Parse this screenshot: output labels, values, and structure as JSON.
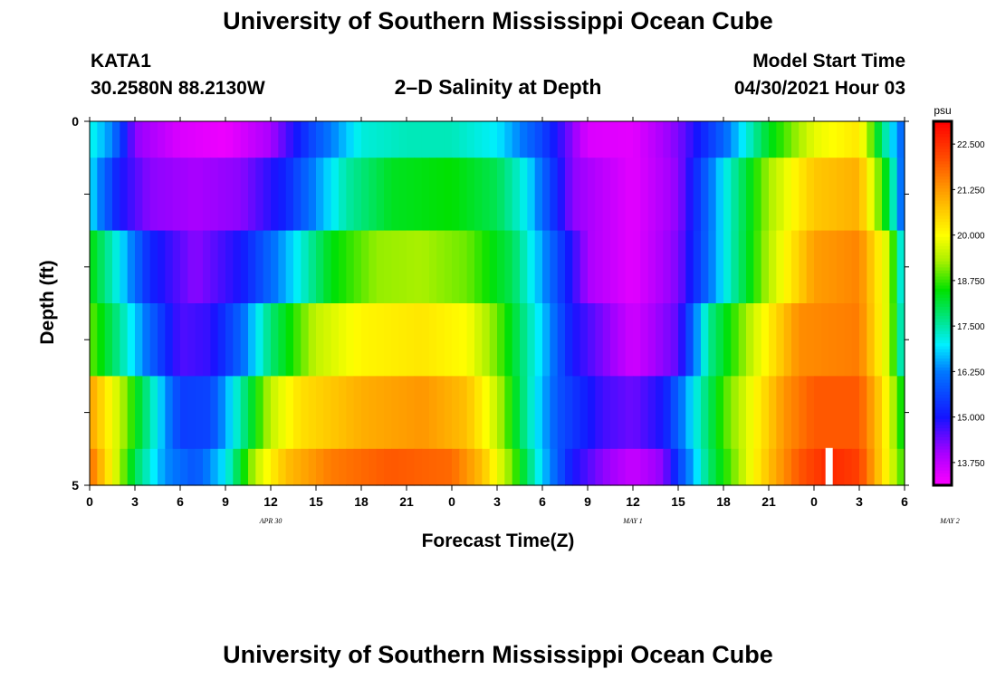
{
  "header": {
    "title": "University of Southern Mississippi Ocean Cube",
    "station": "KATA1",
    "coordinates": "30.2580N  88.2130W",
    "plot_title": "2–D Salinity at Depth",
    "model_start_label": "Model Start Time",
    "model_start_value": "04/30/2021 Hour 03"
  },
  "footer": {
    "title": "University of Southern Mississippi Ocean Cube"
  },
  "chart_data": {
    "type": "heatmap",
    "title": "2–D Salinity at Depth",
    "xlabel": "Forecast Time(Z)",
    "ylabel": "Depth (ft)",
    "x_tick_labels": [
      "0",
      "3",
      "6",
      "9",
      "12",
      "15",
      "18",
      "21",
      "0",
      "3",
      "6",
      "9",
      "12",
      "15",
      "18",
      "21",
      "0",
      "3",
      "6"
    ],
    "date_labels": [
      {
        "label": "APR 30",
        "hour": 12
      },
      {
        "label": "MAY 1",
        "hour": 36
      },
      {
        "label": "MAY 2",
        "hour": 57
      }
    ],
    "x_range_hours": [
      0,
      54
    ],
    "y_tick_labels": [
      "0",
      "5"
    ],
    "ylim": [
      0,
      5
    ],
    "colorbar": {
      "unit": "psu",
      "min": 13.125,
      "max": 23.125,
      "tick_values": [
        13.75,
        15.0,
        16.25,
        17.5,
        18.75,
        20.0,
        21.25,
        22.5
      ],
      "tick_labels": [
        "13.750",
        "15.000",
        "16.250",
        "17.500",
        "18.750",
        "20.000",
        "21.250",
        "22.500"
      ]
    },
    "rows": [
      {
        "depth": 0,
        "values": [
          [
            0,
            17.2
          ],
          [
            1.5,
            16.3
          ],
          [
            3,
            14.2
          ],
          [
            6,
            13.5
          ],
          [
            9,
            13.3
          ],
          [
            12,
            14.0
          ],
          [
            15,
            15.8
          ],
          [
            18,
            17.2
          ],
          [
            21,
            17.4
          ],
          [
            24,
            17.4
          ],
          [
            27,
            17.0
          ],
          [
            30,
            15.6
          ],
          [
            33,
            13.5
          ],
          [
            36,
            13.4
          ],
          [
            39,
            14.3
          ],
          [
            42,
            16.0
          ],
          [
            45,
            18.3
          ],
          [
            48,
            19.8
          ],
          [
            51,
            20.3
          ],
          [
            52.5,
            17.8
          ],
          [
            54,
            15.8
          ]
        ]
      },
      {
        "depth": 1,
        "values": [
          [
            0,
            17.0
          ],
          [
            2,
            15.0
          ],
          [
            4,
            14.2
          ],
          [
            7,
            14.0
          ],
          [
            10,
            14.2
          ],
          [
            13,
            15.2
          ],
          [
            15,
            16.4
          ],
          [
            17,
            17.5
          ],
          [
            20,
            18.3
          ],
          [
            24,
            18.5
          ],
          [
            27,
            18.0
          ],
          [
            29,
            17.0
          ],
          [
            32,
            14.2
          ],
          [
            36,
            13.4
          ],
          [
            39,
            14.2
          ],
          [
            42,
            17.0
          ],
          [
            45,
            19.3
          ],
          [
            48,
            20.7
          ],
          [
            51,
            21.0
          ],
          [
            53,
            18.0
          ],
          [
            54,
            15.6
          ]
        ]
      },
      {
        "depth": 2,
        "values": [
          [
            0,
            18.5
          ],
          [
            2,
            17.0
          ],
          [
            4,
            15.2
          ],
          [
            7,
            14.2
          ],
          [
            10,
            15.0
          ],
          [
            13,
            16.6
          ],
          [
            16,
            18.4
          ],
          [
            19,
            19.2
          ],
          [
            22,
            19.3
          ],
          [
            25,
            19.0
          ],
          [
            28,
            18.0
          ],
          [
            30,
            16.5
          ],
          [
            33,
            14.0
          ],
          [
            36,
            13.4
          ],
          [
            39,
            14.3
          ],
          [
            42,
            17.0
          ],
          [
            45,
            19.4
          ],
          [
            48,
            21.2
          ],
          [
            51,
            21.5
          ],
          [
            53,
            19.5
          ],
          [
            54,
            16.5
          ]
        ]
      },
      {
        "depth": 3,
        "values": [
          [
            0,
            19.0
          ],
          [
            2,
            17.6
          ],
          [
            4,
            16.0
          ],
          [
            6,
            14.6
          ],
          [
            8,
            14.8
          ],
          [
            10,
            16.0
          ],
          [
            12,
            17.8
          ],
          [
            15,
            19.5
          ],
          [
            18,
            20.1
          ],
          [
            22,
            20.3
          ],
          [
            25,
            20.0
          ],
          [
            27,
            19.0
          ],
          [
            30,
            16.8
          ],
          [
            32,
            15.0
          ],
          [
            36,
            13.6
          ],
          [
            39,
            14.5
          ],
          [
            41,
            17.6
          ],
          [
            44,
            19.6
          ],
          [
            47,
            21.4
          ],
          [
            51,
            21.6
          ],
          [
            53,
            19.5
          ],
          [
            54,
            16.8
          ]
        ]
      },
      {
        "depth": 4,
        "values": [
          [
            0,
            21.2
          ],
          [
            2,
            19.5
          ],
          [
            4,
            17.5
          ],
          [
            6,
            15.5
          ],
          [
            8,
            15.6
          ],
          [
            10,
            17.5
          ],
          [
            12,
            19.5
          ],
          [
            14,
            20.4
          ],
          [
            18,
            21.0
          ],
          [
            22,
            21.3
          ],
          [
            25,
            20.8
          ],
          [
            27,
            19.5
          ],
          [
            29,
            17.5
          ],
          [
            31,
            15.8
          ],
          [
            34,
            14.7
          ],
          [
            36,
            14.4
          ],
          [
            38,
            15.0
          ],
          [
            40,
            17.0
          ],
          [
            42,
            18.8
          ],
          [
            44,
            20.0
          ],
          [
            46,
            21.3
          ],
          [
            48,
            22.0
          ],
          [
            51,
            22.0
          ],
          [
            52.5,
            20.5
          ],
          [
            54,
            18.2
          ]
        ]
      },
      {
        "depth": 5,
        "values": [
          [
            0,
            21.8
          ],
          [
            1.5,
            20.0
          ],
          [
            3,
            18.0
          ],
          [
            5,
            16.4
          ],
          [
            7,
            15.8
          ],
          [
            9,
            17.0
          ],
          [
            11,
            19.5
          ],
          [
            13,
            20.8
          ],
          [
            16,
            21.6
          ],
          [
            20,
            22.0
          ],
          [
            24,
            21.8
          ],
          [
            26,
            20.8
          ],
          [
            28,
            19.0
          ],
          [
            30,
            16.8
          ],
          [
            32,
            15.0
          ],
          [
            34,
            14.2
          ],
          [
            36,
            13.7
          ],
          [
            38,
            14.2
          ],
          [
            39,
            15.5
          ],
          [
            41,
            17.8
          ],
          [
            43,
            19.3
          ],
          [
            45,
            20.8
          ],
          [
            47,
            22.0
          ],
          [
            49,
            22.6
          ],
          [
            51,
            22.3
          ],
          [
            52.5,
            20.5
          ],
          [
            54,
            18.6
          ]
        ]
      }
    ],
    "gap_marker": {
      "hour": 49,
      "depth": 4.5
    }
  }
}
